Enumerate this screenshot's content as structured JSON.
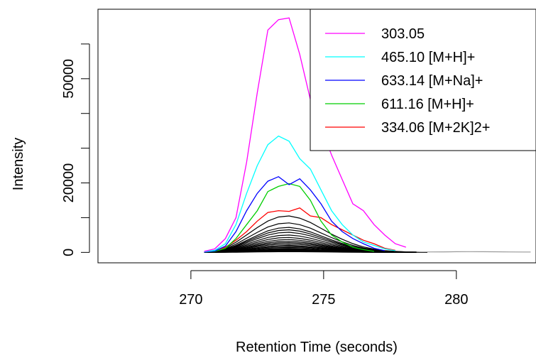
{
  "chart_data": {
    "type": "line",
    "xlabel": "Retention Time (seconds)",
    "ylabel": "Intensity",
    "xlim": [
      266.5,
      283.0
    ],
    "ylim": [
      -3000,
      70000
    ],
    "x_ticks": [
      270,
      275,
      280
    ],
    "x_tick_labels": [
      "270",
      "275",
      "280"
    ],
    "y_ticks": [
      0,
      20000,
      50000
    ],
    "y_tick_labels": [
      "0",
      "20000",
      "50000"
    ],
    "grid": false,
    "legend_position": "top-right",
    "series": [
      {
        "name": "303.05",
        "color": "#ff00ff",
        "x": [
          270.5,
          270.9,
          271.3,
          271.7,
          272.1,
          272.5,
          272.9,
          273.3,
          273.7,
          274.1,
          274.5,
          274.9,
          275.3,
          275.7,
          276.1,
          276.5,
          276.9,
          277.3,
          277.7,
          278.1
        ],
        "y": [
          300,
          1000,
          4000,
          10000,
          26000,
          46000,
          64000,
          67000,
          67500,
          57000,
          44000,
          36000,
          28000,
          21000,
          14000,
          12000,
          8000,
          5000,
          2500,
          1500
        ]
      },
      {
        "name": "465.10 [M+H]+",
        "color": "#00ffff",
        "x": [
          270.5,
          270.9,
          271.3,
          271.7,
          272.1,
          272.5,
          272.9,
          273.3,
          273.7,
          274.1,
          274.5,
          274.9,
          275.3,
          275.7,
          276.1,
          276.5,
          276.9,
          277.3,
          277.7
        ],
        "y": [
          200,
          600,
          2500,
          8000,
          17000,
          25000,
          31000,
          33500,
          32000,
          27000,
          24000,
          18000,
          12000,
          8000,
          5000,
          3000,
          2000,
          1000,
          500
        ]
      },
      {
        "name": "633.14 [M+Na]+",
        "color": "#0000ff",
        "x": [
          270.5,
          270.9,
          271.3,
          271.7,
          272.1,
          272.5,
          272.9,
          273.3,
          273.7,
          274.1,
          274.5,
          274.9,
          275.3,
          275.7,
          276.1,
          276.5,
          276.9,
          277.3
        ],
        "y": [
          100,
          400,
          1800,
          6000,
          12000,
          17000,
          20500,
          21800,
          19500,
          21200,
          18000,
          14000,
          9000,
          6000,
          4000,
          2500,
          1200,
          500
        ]
      },
      {
        "name": "611.16 [M+H]+",
        "color": "#00cd00",
        "x": [
          270.5,
          270.9,
          271.3,
          271.7,
          272.1,
          272.5,
          272.9,
          273.3,
          273.7,
          274.1,
          274.5,
          274.9,
          275.3,
          275.7,
          276.1,
          276.5,
          276.9
        ],
        "y": [
          100,
          300,
          1200,
          4000,
          8000,
          12000,
          17500,
          19000,
          19800,
          19000,
          15000,
          9000,
          5000,
          3000,
          1500,
          800,
          300
        ]
      },
      {
        "name": "334.06 [M+2K]2+",
        "color": "#ff0000",
        "x": [
          270.5,
          270.9,
          271.3,
          271.7,
          272.1,
          272.5,
          272.9,
          273.3,
          273.7,
          274.1,
          274.5,
          274.9,
          275.3,
          275.7,
          276.1,
          276.5,
          276.9,
          277.3,
          277.7
        ],
        "y": [
          100,
          400,
          1500,
          3500,
          6000,
          9000,
          11500,
          12000,
          11800,
          12800,
          10500,
          10000,
          8000,
          6500,
          5000,
          3500,
          2500,
          1200,
          600
        ]
      }
    ],
    "background_traces": {
      "color": "#000000",
      "x": [
        270.5,
        270.9,
        271.3,
        271.7,
        272.1,
        272.5,
        272.9,
        273.3,
        273.7,
        274.1,
        274.5,
        274.9,
        275.3,
        275.7,
        276.1,
        276.5,
        276.9,
        277.3,
        277.7,
        278.1,
        278.5,
        278.9
      ],
      "peaks": [
        10500,
        8500,
        7200,
        6500,
        5800,
        5000,
        4300,
        3700,
        3200,
        2800,
        2400,
        2000,
        1700,
        1400,
        1100,
        900,
        700,
        500,
        350,
        200
      ],
      "profile": [
        0.01,
        0.04,
        0.12,
        0.28,
        0.48,
        0.68,
        0.86,
        0.97,
        1.0,
        0.94,
        0.82,
        0.66,
        0.5,
        0.36,
        0.24,
        0.15,
        0.09,
        0.05,
        0.03,
        0.015,
        0.008,
        0.0
      ]
    },
    "gray_trace": {
      "color": "#999999",
      "x": [
        278.5,
        279.0,
        279.5,
        280.0,
        280.5,
        281.0,
        281.5,
        282.0,
        282.5,
        282.8
      ],
      "y": [
        100,
        120,
        150,
        180,
        210,
        190,
        160,
        130,
        110,
        100
      ]
    }
  }
}
